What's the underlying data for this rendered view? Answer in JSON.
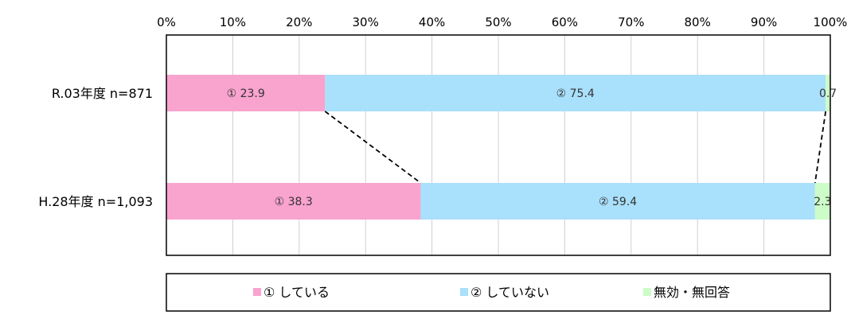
{
  "chart_data": {
    "type": "bar",
    "orientation": "horizontal",
    "stacked": true,
    "percent": true,
    "title": "",
    "xlabel": "",
    "ylabel": "",
    "xlim": [
      0,
      100
    ],
    "grid": true,
    "legend_position": "bottom",
    "x_ticks": [
      "0%",
      "10%",
      "20%",
      "30%",
      "40%",
      "50%",
      "60%",
      "70%",
      "80%",
      "90%",
      "100%"
    ],
    "categories": [
      "R.03年度 n=871",
      "H.28年度 n=1,093"
    ],
    "series": [
      {
        "name": "① している",
        "values": [
          23.9,
          38.3
        ],
        "labels": [
          "① 23.9",
          "① 38.3"
        ],
        "color": "#f9a3cf"
      },
      {
        "name": "② していない",
        "values": [
          75.4,
          59.4
        ],
        "labels": [
          "② 75.4",
          "② 59.4"
        ],
        "color": "#a9e0fb"
      },
      {
        "name": "無効・無回答",
        "values": [
          0.7,
          2.3
        ],
        "labels": [
          "0.7",
          "2.3"
        ],
        "color": "#ccfcc8"
      }
    ]
  }
}
